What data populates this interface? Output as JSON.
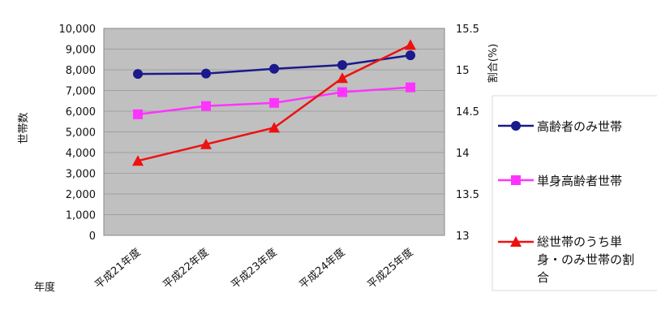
{
  "chart_data": {
    "type": "line",
    "categories": [
      "平成21年度",
      "平成22年度",
      "平成23年度",
      "平成24年度",
      "平成25年度"
    ],
    "xlabel": "年度",
    "ylabel": "世帯数",
    "y2label": "割合(%)",
    "ylim": [
      0,
      10000
    ],
    "y2lim": [
      13,
      15.5
    ],
    "yticks": [
      "0",
      "1,000",
      "2,000",
      "3,000",
      "4,000",
      "5,000",
      "6,000",
      "7,000",
      "8,000",
      "9,000",
      "10,000"
    ],
    "y2ticks": [
      "13",
      "13.5",
      "14",
      "14.5",
      "15",
      "15.5"
    ],
    "grid": true,
    "legend_position": "right",
    "series": [
      {
        "name": "高齢者のみ世帯",
        "axis": "left",
        "values": [
          7800,
          7820,
          8050,
          8230,
          8700
        ],
        "color": "#1a1a8c",
        "marker": "circle"
      },
      {
        "name": "単身高齢者世帯",
        "axis": "left",
        "values": [
          5850,
          6250,
          6400,
          6920,
          7150
        ],
        "color": "#ff33ff",
        "marker": "square"
      },
      {
        "name": "総世帯のうち単身・のみ世帯の割合",
        "name_lines": [
          "総世帯のうち単",
          "身・のみ世帯の割",
          "合"
        ],
        "axis": "right",
        "values": [
          13.9,
          14.1,
          14.3,
          14.9,
          15.3
        ],
        "color": "#ee1111",
        "marker": "triangle"
      }
    ],
    "plot_background": "#c0c0c0",
    "gridline_color": "#a0a0a0"
  }
}
